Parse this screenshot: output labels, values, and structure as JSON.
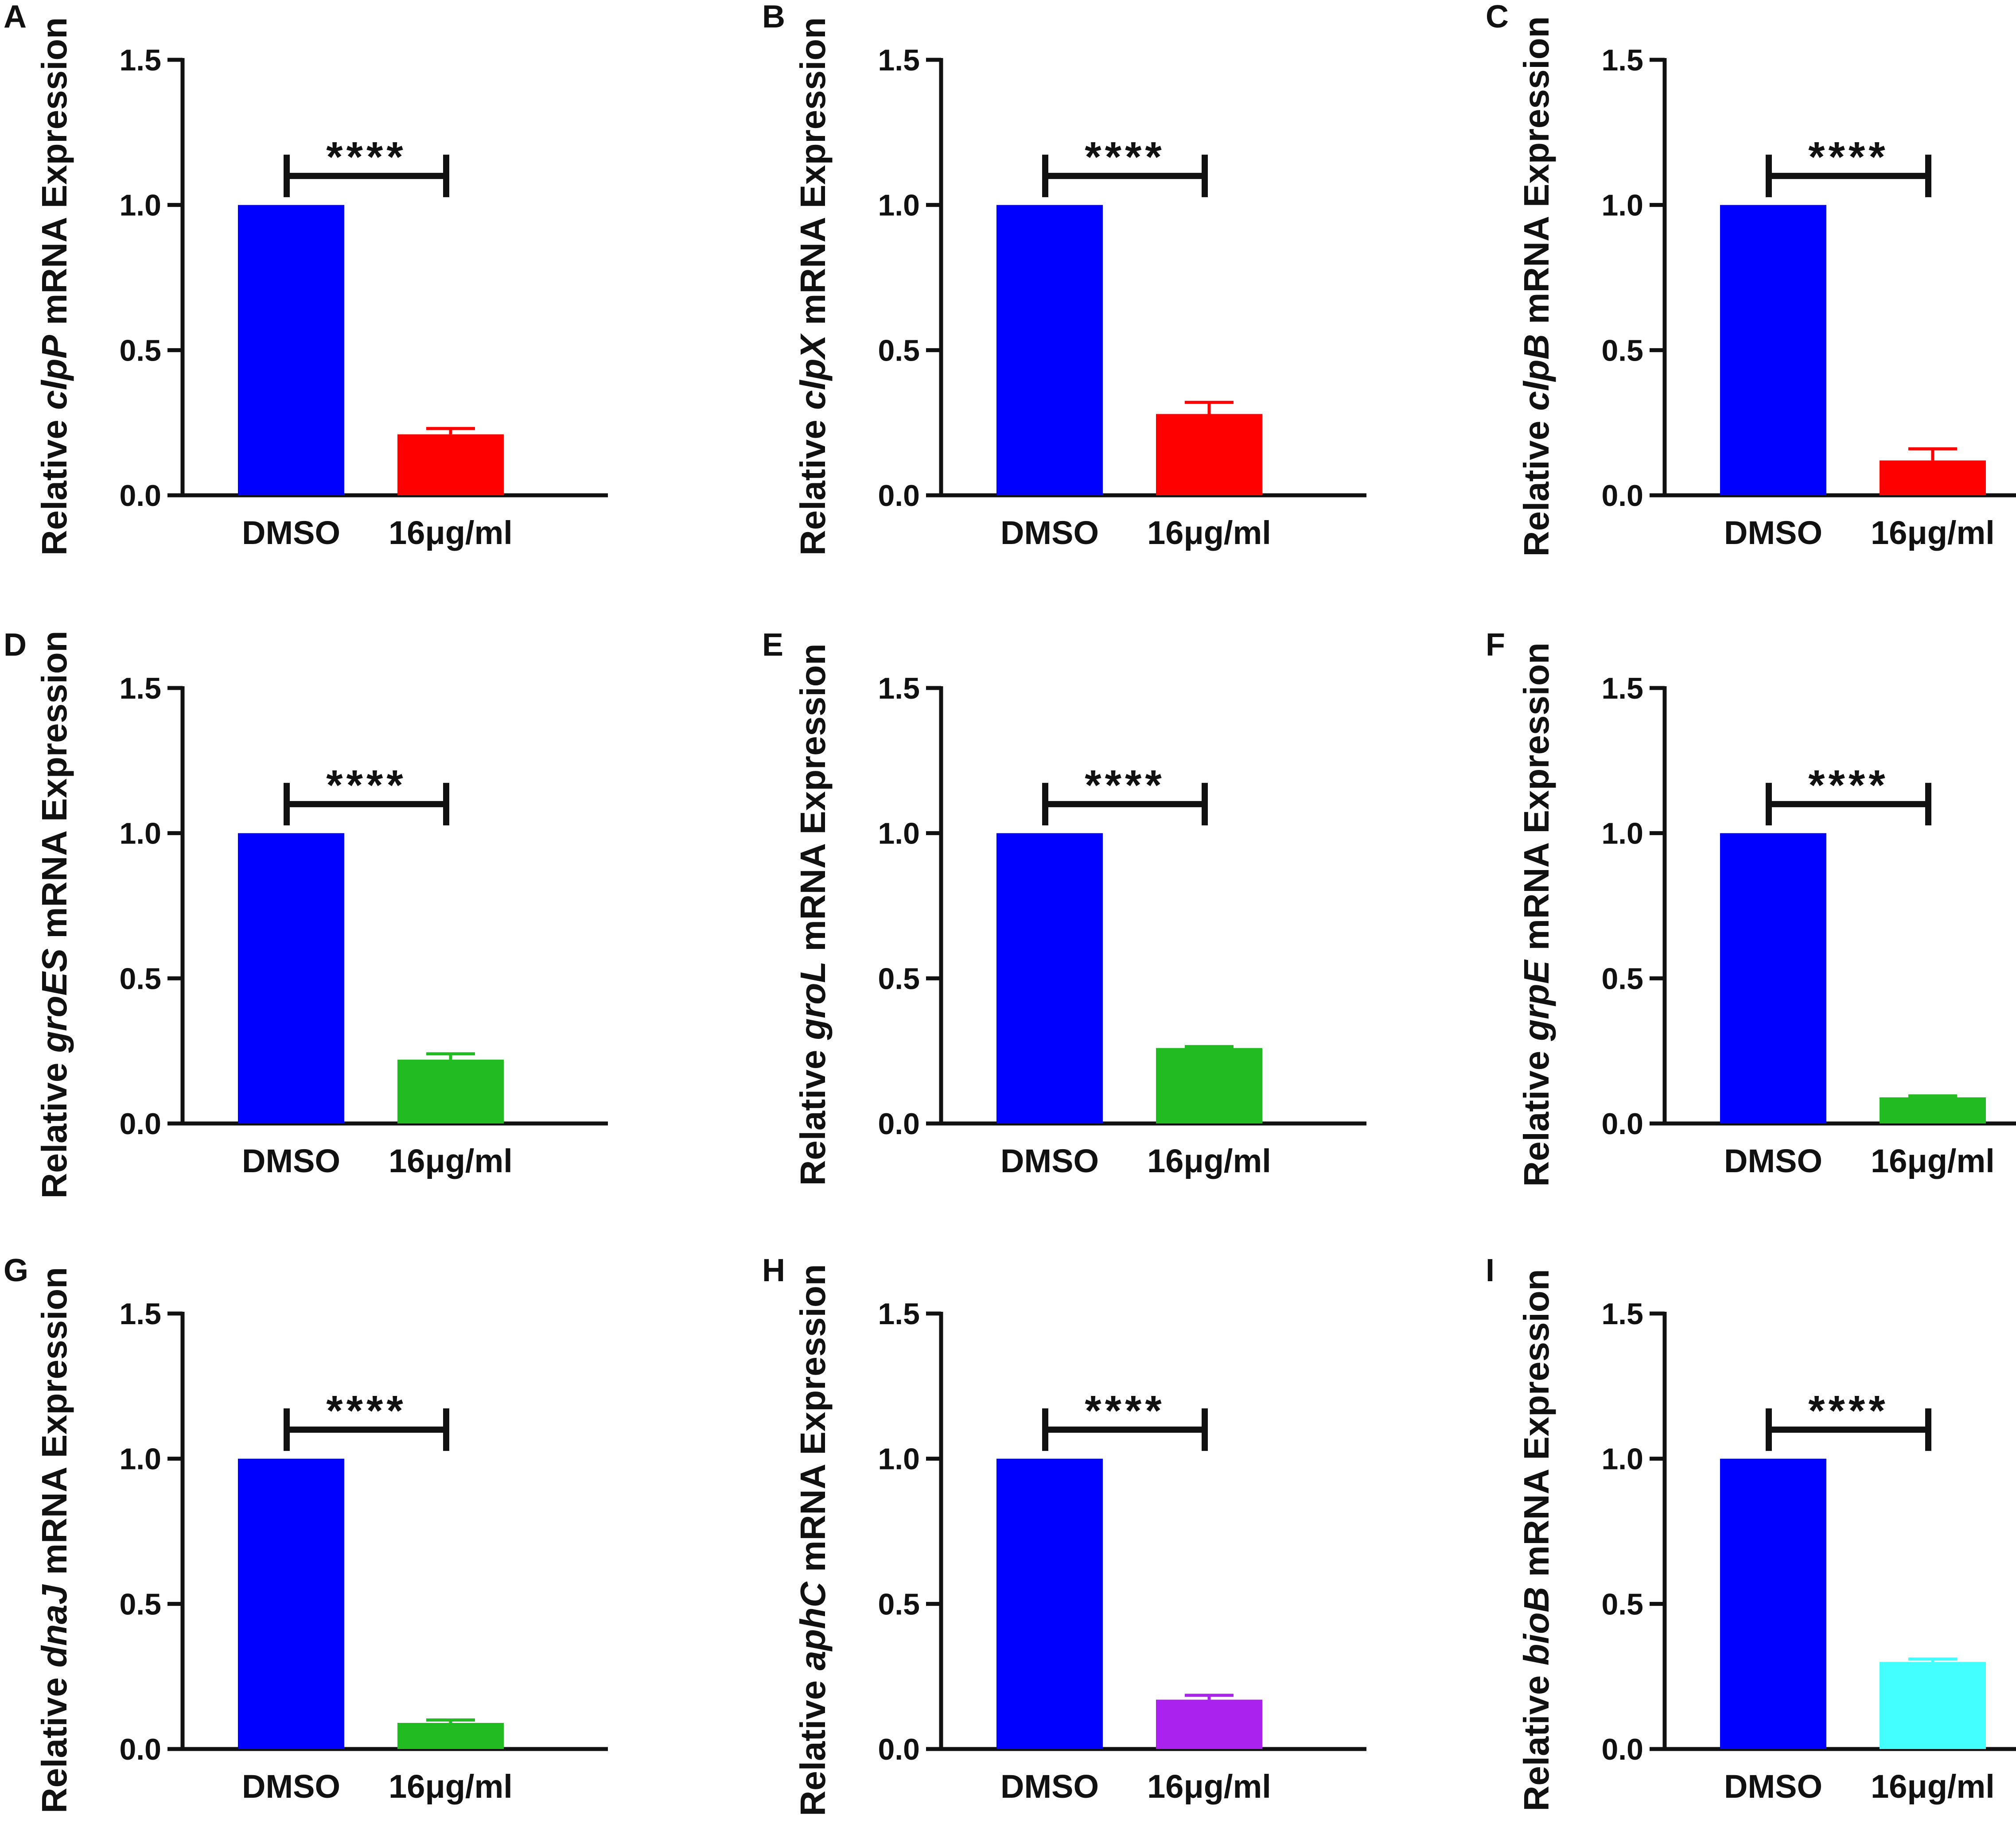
{
  "chart_data": [
    {
      "panel": "A",
      "type": "bar",
      "gene": "clpP",
      "ylabel_pre": "Relative ",
      "ylabel_post": " mRNA Expression",
      "categories": [
        "DMSO",
        "16μg/ml"
      ],
      "values": [
        1.0,
        0.21
      ],
      "errors": [
        0,
        0.02
      ],
      "colors": [
        "#0000ff",
        "#ff0000"
      ],
      "yticks": [
        "0.0",
        "0.5",
        "1.0",
        "1.5"
      ],
      "ylim": [
        0,
        1.5
      ],
      "significance": "****"
    },
    {
      "panel": "B",
      "type": "bar",
      "gene": "clpX",
      "ylabel_pre": "Relative ",
      "ylabel_post": " mRNA Expression",
      "categories": [
        "DMSO",
        "16μg/ml"
      ],
      "values": [
        1.0,
        0.28
      ],
      "errors": [
        0,
        0.04
      ],
      "colors": [
        "#0000ff",
        "#ff0000"
      ],
      "yticks": [
        "0.0",
        "0.5",
        "1.0",
        "1.5"
      ],
      "ylim": [
        0,
        1.5
      ],
      "significance": "****"
    },
    {
      "panel": "C",
      "type": "bar",
      "gene": "clpB",
      "ylabel_pre": "Relative ",
      "ylabel_post": " mRNA Expression",
      "categories": [
        "DMSO",
        "16μg/ml"
      ],
      "values": [
        1.0,
        0.12
      ],
      "errors": [
        0,
        0.04
      ],
      "colors": [
        "#0000ff",
        "#ff0000"
      ],
      "yticks": [
        "0.0",
        "0.5",
        "1.0",
        "1.5"
      ],
      "ylim": [
        0,
        1.5
      ],
      "significance": "****"
    },
    {
      "panel": "D",
      "type": "bar",
      "gene": "groES",
      "ylabel_pre": "Relative ",
      "ylabel_post": " mRNA Expression",
      "categories": [
        "DMSO",
        "16μg/ml"
      ],
      "values": [
        1.0,
        0.22
      ],
      "errors": [
        0,
        0.02
      ],
      "colors": [
        "#0000ff",
        "#22bb22"
      ],
      "yticks": [
        "0.0",
        "0.5",
        "1.0",
        "1.5"
      ],
      "ylim": [
        0,
        1.5
      ],
      "significance": "****"
    },
    {
      "panel": "E",
      "type": "bar",
      "gene": "groL",
      "ylabel_pre": "Relative ",
      "ylabel_post": " mRNA Expression",
      "categories": [
        "DMSO",
        "16μg/ml"
      ],
      "values": [
        1.0,
        0.26
      ],
      "errors": [
        0,
        0.005
      ],
      "colors": [
        "#0000ff",
        "#22bb22"
      ],
      "yticks": [
        "0.0",
        "0.5",
        "1.0",
        "1.5"
      ],
      "ylim": [
        0,
        1.5
      ],
      "significance": "****"
    },
    {
      "panel": "F",
      "type": "bar",
      "gene": "grpE",
      "ylabel_pre": "Relative ",
      "ylabel_post": " mRNA Expression",
      "categories": [
        "DMSO",
        "16μg/ml"
      ],
      "values": [
        1.0,
        0.09
      ],
      "errors": [
        0,
        0.005
      ],
      "colors": [
        "#0000ff",
        "#22bb22"
      ],
      "yticks": [
        "0.0",
        "0.5",
        "1.0",
        "1.5"
      ],
      "ylim": [
        0,
        1.5
      ],
      "significance": "****"
    },
    {
      "panel": "G",
      "type": "bar",
      "gene": "dnaJ",
      "ylabel_pre": "Relative ",
      "ylabel_post": " mRNA Expression",
      "categories": [
        "DMSO",
        "16μg/ml"
      ],
      "values": [
        1.0,
        0.09
      ],
      "errors": [
        0,
        0.01
      ],
      "colors": [
        "#0000ff",
        "#22bb22"
      ],
      "yticks": [
        "0.0",
        "0.5",
        "1.0",
        "1.5"
      ],
      "ylim": [
        0,
        1.5
      ],
      "significance": "****"
    },
    {
      "panel": "H",
      "type": "bar",
      "gene": "aphC",
      "ylabel_pre": "Relative ",
      "ylabel_post": " mRNA Expression",
      "categories": [
        "DMSO",
        "16μg/ml"
      ],
      "values": [
        1.0,
        0.17
      ],
      "errors": [
        0,
        0.015
      ],
      "colors": [
        "#0000ff",
        "#aa22ee"
      ],
      "yticks": [
        "0.0",
        "0.5",
        "1.0",
        "1.5"
      ],
      "ylim": [
        0,
        1.5
      ],
      "significance": "****"
    },
    {
      "panel": "I",
      "type": "bar",
      "gene": "bioB",
      "ylabel_pre": "Relative ",
      "ylabel_post": " mRNA Expression",
      "categories": [
        "DMSO",
        "16μg/ml"
      ],
      "values": [
        1.0,
        0.3
      ],
      "errors": [
        0,
        0.01
      ],
      "colors": [
        "#0000ff",
        "#44ffff"
      ],
      "yticks": [
        "0.0",
        "0.5",
        "1.0",
        "1.5"
      ],
      "ylim": [
        0,
        1.5
      ],
      "significance": "****"
    }
  ]
}
